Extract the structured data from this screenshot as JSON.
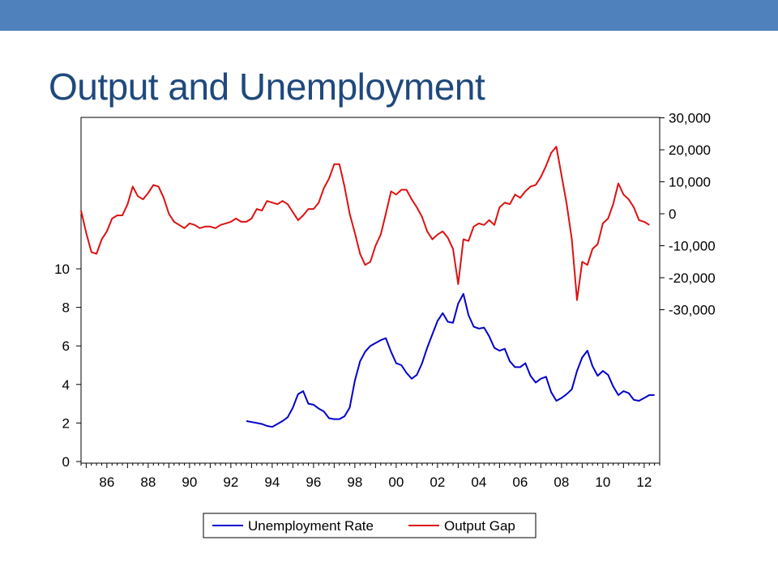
{
  "slide": {
    "title": "Output and Unemployment",
    "accent_color": "#4f81bd",
    "title_color": "#1f497d"
  },
  "chart_data": {
    "type": "line",
    "title": "",
    "xlabel": "",
    "x_tick_labels": [
      "86",
      "88",
      "90",
      "92",
      "94",
      "96",
      "98",
      "00",
      "02",
      "04",
      "06",
      "08",
      "10",
      "12"
    ],
    "x_tick_years": [
      1986,
      1988,
      1990,
      1992,
      1994,
      1996,
      1998,
      2000,
      2002,
      2004,
      2006,
      2008,
      2010,
      2012
    ],
    "xlim": [
      1984.75,
      2012.75
    ],
    "left_axis": {
      "ticks": [
        0,
        2,
        4,
        6,
        8,
        10
      ],
      "tick_labels": [
        "0",
        "2",
        "4",
        "6",
        "8",
        "10"
      ]
    },
    "right_axis": {
      "ticks": [
        30000,
        20000,
        10000,
        0,
        -10000,
        -20000,
        -30000
      ],
      "tick_labels": [
        "30,000",
        "20,000",
        "10,000",
        "0",
        "-10,000",
        "-20,000",
        "-30,000"
      ]
    },
    "legend_position": "bottom",
    "grid": false,
    "series": [
      {
        "name": "Unemployment Rate",
        "axis": "left",
        "color": "#0000cc",
        "points": [
          [
            1992.75,
            2.1
          ],
          [
            1993.0,
            2.05
          ],
          [
            1993.25,
            2.0
          ],
          [
            1993.5,
            1.95
          ],
          [
            1993.75,
            1.85
          ],
          [
            1994.0,
            1.8
          ],
          [
            1994.25,
            1.95
          ],
          [
            1994.5,
            2.1
          ],
          [
            1994.75,
            2.3
          ],
          [
            1995.0,
            2.8
          ],
          [
            1995.25,
            3.5
          ],
          [
            1995.5,
            3.65
          ],
          [
            1995.75,
            3.0
          ],
          [
            1996.0,
            2.95
          ],
          [
            1996.25,
            2.75
          ],
          [
            1996.5,
            2.6
          ],
          [
            1996.75,
            2.25
          ],
          [
            1997.0,
            2.2
          ],
          [
            1997.25,
            2.2
          ],
          [
            1997.5,
            2.35
          ],
          [
            1997.75,
            2.8
          ],
          [
            1998.0,
            4.2
          ],
          [
            1998.25,
            5.2
          ],
          [
            1998.5,
            5.7
          ],
          [
            1998.75,
            6.0
          ],
          [
            1999.0,
            6.15
          ],
          [
            1999.25,
            6.3
          ],
          [
            1999.5,
            6.4
          ],
          [
            1999.75,
            5.7
          ],
          [
            2000.0,
            5.1
          ],
          [
            2000.25,
            5.0
          ],
          [
            2000.5,
            4.6
          ],
          [
            2000.75,
            4.3
          ],
          [
            2001.0,
            4.5
          ],
          [
            2001.25,
            5.1
          ],
          [
            2001.5,
            5.9
          ],
          [
            2001.75,
            6.6
          ],
          [
            2002.0,
            7.3
          ],
          [
            2002.25,
            7.7
          ],
          [
            2002.5,
            7.25
          ],
          [
            2002.75,
            7.2
          ],
          [
            2003.0,
            8.2
          ],
          [
            2003.25,
            8.7
          ],
          [
            2003.5,
            7.6
          ],
          [
            2003.75,
            7.0
          ],
          [
            2004.0,
            6.9
          ],
          [
            2004.25,
            6.95
          ],
          [
            2004.5,
            6.5
          ],
          [
            2004.75,
            5.9
          ],
          [
            2005.0,
            5.75
          ],
          [
            2005.25,
            5.85
          ],
          [
            2005.5,
            5.2
          ],
          [
            2005.75,
            4.9
          ],
          [
            2006.0,
            4.9
          ],
          [
            2006.25,
            5.1
          ],
          [
            2006.5,
            4.45
          ],
          [
            2006.75,
            4.1
          ],
          [
            2007.0,
            4.3
          ],
          [
            2007.25,
            4.4
          ],
          [
            2007.5,
            3.6
          ],
          [
            2007.75,
            3.15
          ],
          [
            2008.0,
            3.3
          ],
          [
            2008.25,
            3.5
          ],
          [
            2008.5,
            3.75
          ],
          [
            2008.75,
            4.7
          ],
          [
            2009.0,
            5.4
          ],
          [
            2009.25,
            5.75
          ],
          [
            2009.5,
            4.95
          ],
          [
            2009.75,
            4.45
          ],
          [
            2010.0,
            4.7
          ],
          [
            2010.25,
            4.5
          ],
          [
            2010.5,
            3.9
          ],
          [
            2010.75,
            3.45
          ],
          [
            2011.0,
            3.65
          ],
          [
            2011.25,
            3.55
          ],
          [
            2011.5,
            3.2
          ],
          [
            2011.75,
            3.15
          ],
          [
            2012.0,
            3.3
          ],
          [
            2012.25,
            3.45
          ],
          [
            2012.5,
            3.45
          ]
        ]
      },
      {
        "name": "Output Gap",
        "axis": "right",
        "color": "#dd1111",
        "points": [
          [
            1984.75,
            1000
          ],
          [
            1985.0,
            -6000
          ],
          [
            1985.25,
            -12000
          ],
          [
            1985.5,
            -12500
          ],
          [
            1985.75,
            -8000
          ],
          [
            1986.0,
            -5500
          ],
          [
            1986.25,
            -1500
          ],
          [
            1986.5,
            -500
          ],
          [
            1986.75,
            -500
          ],
          [
            1987.0,
            3000
          ],
          [
            1987.25,
            8500
          ],
          [
            1987.5,
            5500
          ],
          [
            1987.75,
            4500
          ],
          [
            1988.0,
            6500
          ],
          [
            1988.25,
            9000
          ],
          [
            1988.5,
            8500
          ],
          [
            1988.75,
            5000
          ],
          [
            1989.0,
            0
          ],
          [
            1989.25,
            -2500
          ],
          [
            1989.5,
            -3500
          ],
          [
            1989.75,
            -4500
          ],
          [
            1990.0,
            -3000
          ],
          [
            1990.25,
            -3500
          ],
          [
            1990.5,
            -4500
          ],
          [
            1990.75,
            -4000
          ],
          [
            1991.0,
            -4000
          ],
          [
            1991.25,
            -4500
          ],
          [
            1991.5,
            -3500
          ],
          [
            1991.75,
            -3000
          ],
          [
            1992.0,
            -2500
          ],
          [
            1992.25,
            -1500
          ],
          [
            1992.5,
            -2500
          ],
          [
            1992.75,
            -2500
          ],
          [
            1993.0,
            -1500
          ],
          [
            1993.25,
            1500
          ],
          [
            1993.5,
            1000
          ],
          [
            1993.75,
            4000
          ],
          [
            1994.0,
            3500
          ],
          [
            1994.25,
            3000
          ],
          [
            1994.5,
            4000
          ],
          [
            1994.75,
            3000
          ],
          [
            1995.0,
            500
          ],
          [
            1995.25,
            -2000
          ],
          [
            1995.5,
            -500
          ],
          [
            1995.75,
            1500
          ],
          [
            1996.0,
            1500
          ],
          [
            1996.25,
            3500
          ],
          [
            1996.5,
            8000
          ],
          [
            1996.75,
            11000
          ],
          [
            1997.0,
            15500
          ],
          [
            1997.25,
            15500
          ],
          [
            1997.5,
            8500
          ],
          [
            1997.75,
            0
          ],
          [
            1998.0,
            -6000
          ],
          [
            1998.25,
            -12500
          ],
          [
            1998.5,
            -16000
          ],
          [
            1998.75,
            -15000
          ],
          [
            1999.0,
            -10000
          ],
          [
            1999.25,
            -6500
          ],
          [
            1999.5,
            0
          ],
          [
            1999.75,
            7000
          ],
          [
            2000.0,
            6000
          ],
          [
            2000.25,
            7500
          ],
          [
            2000.5,
            7500
          ],
          [
            2000.75,
            4500
          ],
          [
            2001.0,
            2000
          ],
          [
            2001.25,
            -1000
          ],
          [
            2001.5,
            -5500
          ],
          [
            2001.75,
            -8000
          ],
          [
            2002.0,
            -6500
          ],
          [
            2002.25,
            -5500
          ],
          [
            2002.5,
            -7500
          ],
          [
            2002.75,
            -11000
          ],
          [
            2003.0,
            -22000
          ],
          [
            2003.25,
            -8000
          ],
          [
            2003.5,
            -8500
          ],
          [
            2003.75,
            -4000
          ],
          [
            2004.0,
            -3000
          ],
          [
            2004.25,
            -3500
          ],
          [
            2004.5,
            -2000
          ],
          [
            2004.75,
            -3500
          ],
          [
            2005.0,
            2000
          ],
          [
            2005.25,
            3500
          ],
          [
            2005.5,
            3000
          ],
          [
            2005.75,
            6000
          ],
          [
            2006.0,
            5000
          ],
          [
            2006.25,
            7000
          ],
          [
            2006.5,
            8500
          ],
          [
            2006.75,
            9000
          ],
          [
            2007.0,
            11500
          ],
          [
            2007.25,
            15000
          ],
          [
            2007.5,
            19000
          ],
          [
            2007.75,
            21000
          ],
          [
            2008.0,
            12000
          ],
          [
            2008.25,
            3000
          ],
          [
            2008.5,
            -8000
          ],
          [
            2008.75,
            -27000
          ],
          [
            2009.0,
            -15000
          ],
          [
            2009.25,
            -16000
          ],
          [
            2009.5,
            -11000
          ],
          [
            2009.75,
            -9500
          ],
          [
            2010.0,
            -3000
          ],
          [
            2010.25,
            -1500
          ],
          [
            2010.5,
            3000
          ],
          [
            2010.75,
            9500
          ],
          [
            2011.0,
            6000
          ],
          [
            2011.25,
            4500
          ],
          [
            2011.5,
            2000
          ],
          [
            2011.75,
            -2000
          ],
          [
            2012.0,
            -2500
          ],
          [
            2012.25,
            -3500
          ]
        ]
      }
    ]
  }
}
